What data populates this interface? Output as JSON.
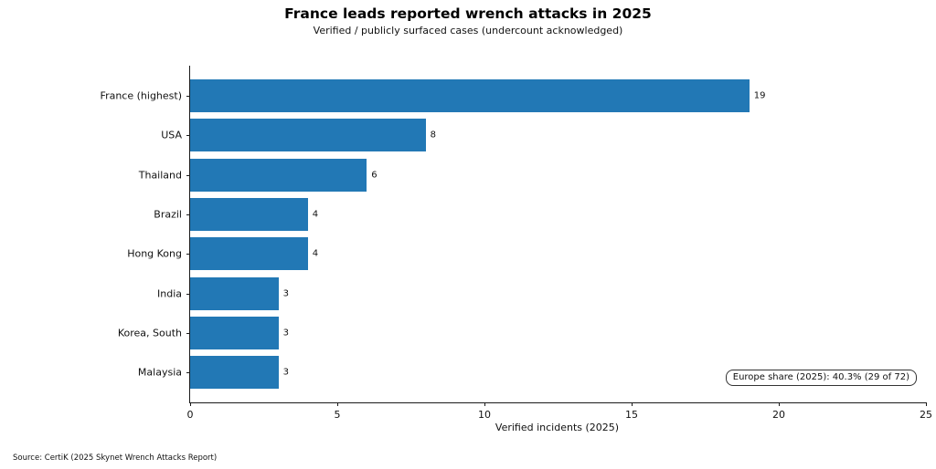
{
  "chart_data": {
    "type": "bar",
    "orientation": "horizontal",
    "title": "France leads reported wrench attacks in 2025",
    "subtitle": "Verified / publicly surfaced cases (undercount acknowledged)",
    "categories": [
      "France (highest)",
      "USA",
      "Thailand",
      "Brazil",
      "Hong Kong",
      "India",
      "Korea, South",
      "Malaysia"
    ],
    "values": [
      19,
      8,
      6,
      4,
      4,
      3,
      3,
      3
    ],
    "xlabel": "Verified incidents (2025)",
    "xlim": [
      0,
      25
    ],
    "xticks": [
      0,
      5,
      10,
      15,
      20,
      25
    ],
    "bar_color": "#2278b5",
    "annotation": "Europe share (2025): 40.3% (29 of 72)",
    "grid": false,
    "legend": null
  },
  "source_note": "Source: CertiK (2025 Skynet Wrench Attacks Report)"
}
